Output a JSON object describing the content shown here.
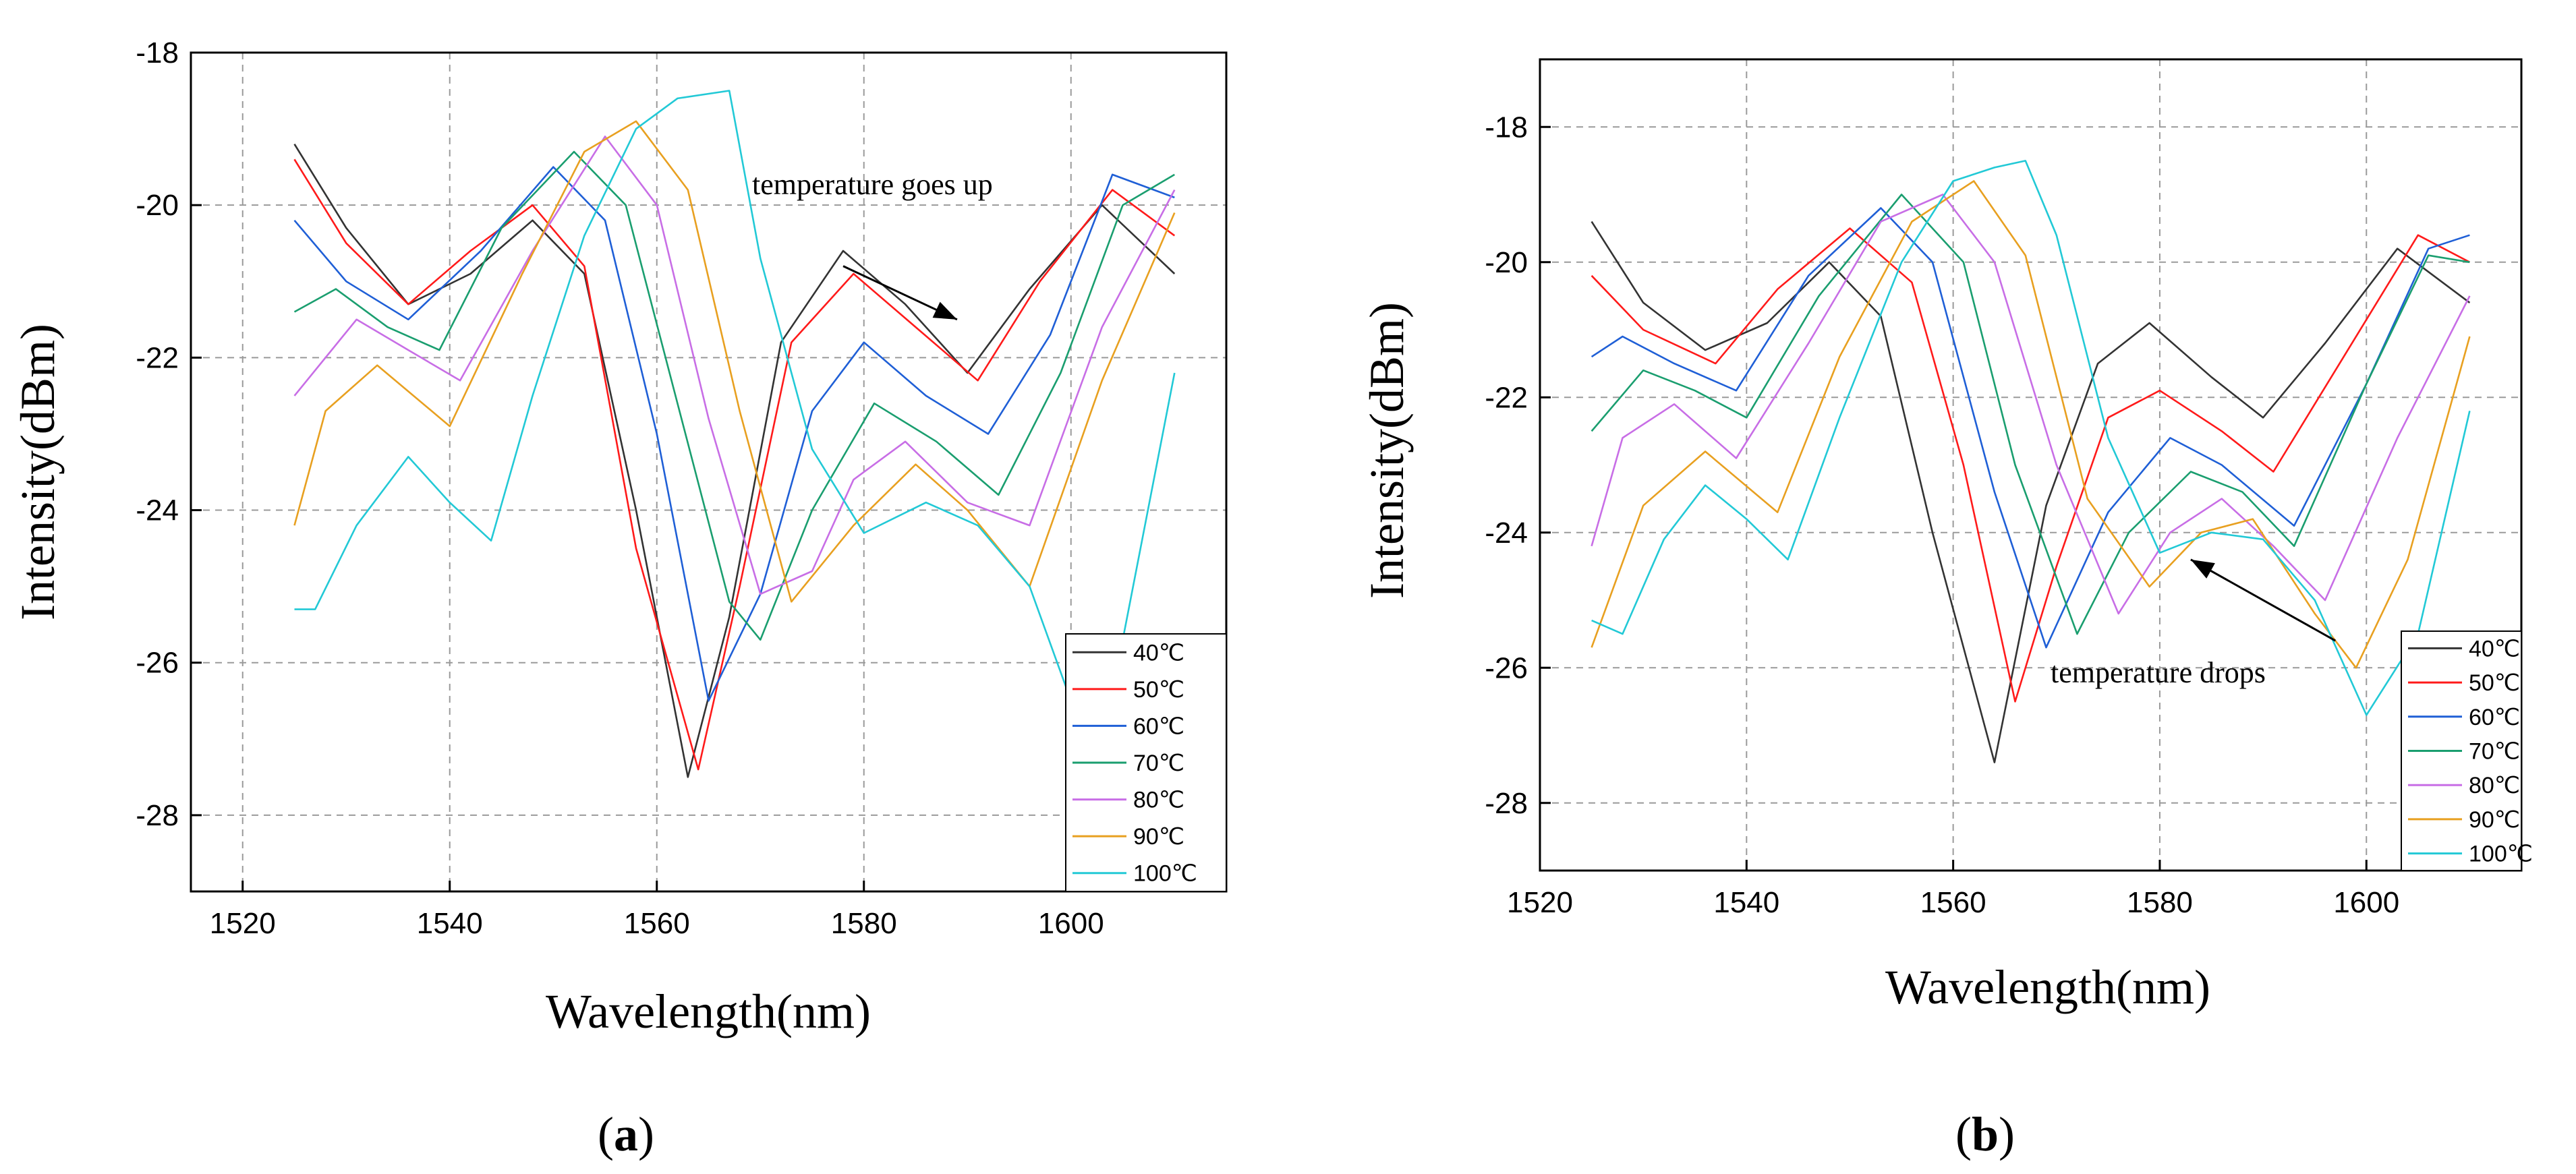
{
  "chart_data": [
    {
      "type": "line",
      "panel_label": "a",
      "xlabel": "Wavelength(nm)",
      "ylabel": "Intensity(dBm)",
      "xlim": [
        1515,
        1615
      ],
      "ylim": [
        -29,
        -18
      ],
      "xticks": [
        "1520",
        "1540",
        "1560",
        "1580",
        "1600"
      ],
      "yticks": [
        "-18",
        "-20",
        "-22",
        "-24",
        "-26",
        "-28"
      ],
      "grid": true,
      "legend_position": "bottom-right",
      "annotation": {
        "text": "temperature goes up",
        "from": [
          1578,
          -20.8
        ],
        "to": [
          1589,
          -21.5
        ]
      },
      "series": [
        {
          "name": "40℃",
          "color": "#333333",
          "x": [
            1525,
            1530,
            1536,
            1542,
            1548,
            1553,
            1558,
            1563,
            1567,
            1572,
            1578,
            1584,
            1590,
            1596,
            1603,
            1610
          ],
          "values": [
            -19.2,
            -20.3,
            -21.3,
            -20.9,
            -20.2,
            -20.9,
            -24.0,
            -27.5,
            -25.4,
            -21.8,
            -20.6,
            -21.3,
            -22.2,
            -21.1,
            -20.0,
            -20.9
          ]
        },
        {
          "name": "50℃",
          "color": "#ff1a1a",
          "x": [
            1525,
            1530,
            1536,
            1542,
            1548,
            1553,
            1558,
            1564,
            1568,
            1573,
            1579,
            1585,
            1591,
            1597,
            1604,
            1610
          ],
          "values": [
            -19.4,
            -20.5,
            -21.3,
            -20.6,
            -20.0,
            -20.8,
            -24.5,
            -27.4,
            -25.0,
            -21.8,
            -20.9,
            -21.6,
            -22.3,
            -21.0,
            -19.8,
            -20.4
          ]
        },
        {
          "name": "60℃",
          "color": "#1f5fd6",
          "x": [
            1525,
            1530,
            1536,
            1543,
            1550,
            1555,
            1560,
            1565,
            1570,
            1575,
            1580,
            1586,
            1592,
            1598,
            1604,
            1610
          ],
          "values": [
            -20.2,
            -21.0,
            -21.5,
            -20.6,
            -19.5,
            -20.2,
            -23.0,
            -26.5,
            -25.1,
            -22.7,
            -21.8,
            -22.5,
            -23.0,
            -21.7,
            -19.6,
            -19.9
          ]
        },
        {
          "name": "70℃",
          "color": "#1a9e6f",
          "x": [
            1525,
            1529,
            1534,
            1539,
            1545,
            1552,
            1557,
            1562,
            1567,
            1570,
            1575,
            1581,
            1587,
            1593,
            1599,
            1605,
            1610
          ],
          "values": [
            -21.4,
            -21.1,
            -21.6,
            -21.9,
            -20.3,
            -19.3,
            -20.0,
            -22.6,
            -25.2,
            -25.7,
            -24.0,
            -22.6,
            -23.1,
            -23.8,
            -22.2,
            -20.0,
            -19.6
          ]
        },
        {
          "name": "80℃",
          "color": "#c86ee6",
          "x": [
            1525,
            1531,
            1536,
            1541,
            1548,
            1555,
            1560,
            1565,
            1570,
            1575,
            1579,
            1584,
            1590,
            1596,
            1603,
            1610
          ],
          "values": [
            -22.5,
            -21.5,
            -21.9,
            -22.3,
            -20.6,
            -19.1,
            -20.0,
            -22.8,
            -25.1,
            -24.8,
            -23.6,
            -23.1,
            -23.9,
            -24.2,
            -21.6,
            -19.8
          ]
        },
        {
          "name": "90℃",
          "color": "#e8a020",
          "x": [
            1525,
            1528,
            1533,
            1540,
            1547,
            1553,
            1558,
            1563,
            1568,
            1573,
            1579,
            1585,
            1590,
            1596,
            1603,
            1610
          ],
          "values": [
            -24.2,
            -22.7,
            -22.1,
            -22.9,
            -20.9,
            -19.3,
            -18.9,
            -19.8,
            -22.7,
            -25.2,
            -24.2,
            -23.4,
            -24.0,
            -25.0,
            -22.3,
            -20.1
          ]
        },
        {
          "name": "100℃",
          "color": "#22c9d6",
          "x": [
            1525,
            1527,
            1531,
            1536,
            1540,
            1544,
            1548,
            1553,
            1558,
            1562,
            1567,
            1570,
            1575,
            1580,
            1586,
            1591,
            1596,
            1600,
            1605,
            1610
          ],
          "values": [
            -25.3,
            -25.3,
            -24.2,
            -23.3,
            -23.9,
            -24.4,
            -22.5,
            -20.4,
            -19.0,
            -18.6,
            -18.5,
            -20.7,
            -23.2,
            -24.3,
            -23.9,
            -24.2,
            -25.0,
            -26.5,
            -25.7,
            -22.2
          ]
        }
      ]
    },
    {
      "type": "line",
      "panel_label": "b",
      "xlabel": "Wavelength(nm)",
      "ylabel": "Intensity(dBm)",
      "xlim": [
        1520,
        1615
      ],
      "ylim": [
        -29,
        -17
      ],
      "xticks": [
        "1520",
        "1540",
        "1560",
        "1580",
        "1600"
      ],
      "yticks": [
        "-18",
        "-20",
        "-22",
        "-24",
        "-26",
        "-28"
      ],
      "grid": true,
      "legend_position": "bottom-right",
      "annotation": {
        "text": "temperature drops",
        "from": [
          1597,
          -25.6
        ],
        "to": [
          1583,
          -24.4
        ]
      },
      "series": [
        {
          "name": "40℃",
          "color": "#333333",
          "x": [
            1525,
            1530,
            1536,
            1542,
            1548,
            1553,
            1558,
            1564,
            1569,
            1574,
            1579,
            1585,
            1590,
            1596,
            1603,
            1610
          ],
          "values": [
            -19.4,
            -20.6,
            -21.3,
            -20.9,
            -20.0,
            -20.8,
            -24.0,
            -27.4,
            -23.6,
            -21.5,
            -20.9,
            -21.7,
            -22.3,
            -21.2,
            -19.8,
            -20.6
          ]
        },
        {
          "name": "50℃",
          "color": "#ff1a1a",
          "x": [
            1525,
            1530,
            1537,
            1543,
            1550,
            1556,
            1561,
            1566,
            1570,
            1575,
            1580,
            1586,
            1591,
            1597,
            1605,
            1610
          ],
          "values": [
            -20.2,
            -21.0,
            -21.5,
            -20.4,
            -19.5,
            -20.3,
            -23.0,
            -26.5,
            -24.5,
            -22.3,
            -21.9,
            -22.5,
            -23.1,
            -21.6,
            -19.6,
            -20.0
          ]
        },
        {
          "name": "60℃",
          "color": "#1f5fd6",
          "x": [
            1525,
            1528,
            1533,
            1539,
            1546,
            1553,
            1558,
            1564,
            1569,
            1575,
            1581,
            1586,
            1593,
            1600,
            1606,
            1610
          ],
          "values": [
            -21.4,
            -21.1,
            -21.5,
            -21.9,
            -20.2,
            -19.2,
            -20.0,
            -23.4,
            -25.7,
            -23.7,
            -22.6,
            -23.0,
            -23.9,
            -21.8,
            -19.8,
            -19.6
          ]
        },
        {
          "name": "70℃",
          "color": "#1a9e6f",
          "x": [
            1525,
            1530,
            1535,
            1540,
            1547,
            1555,
            1561,
            1566,
            1572,
            1577,
            1583,
            1588,
            1593,
            1600,
            1606,
            1610
          ],
          "values": [
            -22.5,
            -21.6,
            -21.9,
            -22.3,
            -20.5,
            -19.0,
            -20.0,
            -23.0,
            -25.5,
            -24.0,
            -23.1,
            -23.4,
            -24.2,
            -21.8,
            -19.9,
            -20.0
          ]
        },
        {
          "name": "80℃",
          "color": "#c86ee6",
          "x": [
            1525,
            1528,
            1533,
            1539,
            1546,
            1553,
            1559,
            1564,
            1570,
            1576,
            1581,
            1586,
            1591,
            1596,
            1603,
            1610
          ],
          "values": [
            -24.2,
            -22.6,
            -22.1,
            -22.9,
            -21.2,
            -19.4,
            -19.0,
            -20.0,
            -23.0,
            -25.2,
            -24.0,
            -23.5,
            -24.2,
            -25.0,
            -22.6,
            -20.5
          ]
        },
        {
          "name": "90℃",
          "color": "#e8a020",
          "x": [
            1525,
            1530,
            1536,
            1543,
            1549,
            1556,
            1562,
            1567,
            1573,
            1579,
            1584,
            1589,
            1595,
            1599,
            1604,
            1610
          ],
          "values": [
            -25.7,
            -23.6,
            -22.8,
            -23.7,
            -21.4,
            -19.4,
            -18.8,
            -19.9,
            -23.5,
            -24.8,
            -24.0,
            -23.8,
            -25.2,
            -26.0,
            -24.4,
            -21.1
          ]
        },
        {
          "name": "100℃",
          "color": "#22c9d6",
          "x": [
            1525,
            1528,
            1532,
            1536,
            1540,
            1544,
            1549,
            1555,
            1560,
            1564,
            1567,
            1570,
            1575,
            1580,
            1585,
            1590,
            1595,
            1600,
            1605,
            1610
          ],
          "values": [
            -25.3,
            -25.5,
            -24.1,
            -23.3,
            -23.8,
            -24.4,
            -22.3,
            -20.0,
            -18.8,
            -18.6,
            -18.5,
            -19.6,
            -22.6,
            -24.3,
            -24.0,
            -24.1,
            -25.0,
            -26.7,
            -25.5,
            -22.2
          ]
        }
      ]
    }
  ]
}
